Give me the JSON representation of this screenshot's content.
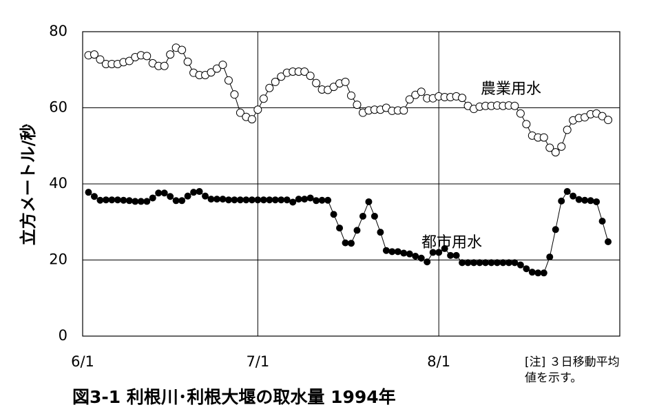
{
  "chart_data": {
    "type": "line",
    "title": "図3-1  利根川･利根大堰の取水量  1994年",
    "ylabel": "立方メートル/秒",
    "note": [
      "[注] ３日移動平均",
      "値を示す。"
    ],
    "x": [
      1,
      2,
      3,
      4,
      5,
      6,
      7,
      8,
      9,
      10,
      11,
      12,
      13,
      14,
      15,
      16,
      17,
      18,
      19,
      20,
      21,
      22,
      23,
      24,
      25,
      26,
      27,
      28,
      29,
      30,
      31,
      32,
      33,
      34,
      35,
      36,
      37,
      38,
      39,
      40,
      41,
      42,
      43,
      44,
      45,
      46,
      47,
      48,
      49,
      50,
      51,
      52,
      53,
      54,
      55,
      56,
      57,
      58,
      59,
      60,
      61,
      62,
      63,
      64,
      65,
      66,
      67,
      68,
      69,
      70,
      71,
      72,
      73,
      74,
      75,
      76,
      77,
      78,
      79,
      80,
      81,
      82,
      83,
      84,
      85,
      86,
      87,
      88,
      89,
      90
    ],
    "series": [
      {
        "name": "農業用水",
        "color": "#000000",
        "marker": "open",
        "values": [
          73.8,
          74,
          72.7,
          71.5,
          71.5,
          71.5,
          72,
          72.3,
          73.3,
          73.8,
          73.6,
          71.7,
          71,
          71,
          74,
          75.8,
          75.2,
          72.1,
          69.2,
          68.6,
          68.6,
          69.3,
          70.3,
          71.3,
          67.2,
          63.5,
          58.7,
          57.6,
          57,
          59.5,
          62.4,
          65.2,
          66.8,
          68.2,
          69.2,
          69.5,
          69.5,
          69.5,
          68.4,
          66.5,
          64.8,
          64.7,
          65.5,
          66.4,
          66.8,
          63.2,
          60.8,
          58.7,
          59.3,
          59.5,
          59.5,
          60,
          59.2,
          59.3,
          59.3,
          62.2,
          63.4,
          64.2,
          62.5,
          62.5,
          63,
          62.8,
          62.8,
          63,
          62.6,
          60.5,
          59.7,
          60.3,
          60.5,
          60.5,
          60.6,
          60.5,
          60.6,
          60.5,
          58.5,
          55.7,
          52.7,
          52.2,
          52.2,
          49.5,
          48.3,
          49.8,
          54.2,
          56.7,
          57.3,
          57.5,
          58.3,
          58.5,
          57.8,
          56.8
        ]
      },
      {
        "name": "都市用水",
        "color": "#000000",
        "marker": "filled",
        "values": [
          37.8,
          36.7,
          35.7,
          35.8,
          35.8,
          35.8,
          35.7,
          35.6,
          35.4,
          35.4,
          35.4,
          36.3,
          37.6,
          37.6,
          36.7,
          35.6,
          35.6,
          36.8,
          37.8,
          38,
          36.8,
          36,
          36,
          36,
          35.8,
          35.8,
          35.8,
          35.8,
          35.8,
          35.8,
          35.8,
          35.8,
          35.8,
          35.8,
          35.8,
          35.2,
          36,
          36,
          36.3,
          35.6,
          35.7,
          35.7,
          32,
          28.4,
          24.5,
          24.4,
          27.8,
          31.5,
          35.3,
          31.5,
          27.3,
          22.5,
          22.2,
          22.2,
          21.8,
          21.6,
          21,
          20.5,
          19.5,
          22,
          22,
          23,
          21.2,
          21.2,
          19.3,
          19.3,
          19.3,
          19.3,
          19.3,
          19.3,
          19.3,
          19.3,
          19.3,
          19.3,
          18.7,
          17.7,
          16.8,
          16.6,
          16.6,
          20.8,
          28,
          35.5,
          38,
          36.8,
          35.9,
          35.7,
          35.6,
          35.3,
          30.2,
          24.8
        ]
      }
    ],
    "xlim": [
      0,
      92
    ],
    "xticks": [
      {
        "value": 0,
        "label": "6/1"
      },
      {
        "value": 30,
        "label": "7/1"
      },
      {
        "value": 61,
        "label": "8/1"
      }
    ],
    "ylim": [
      0,
      80
    ],
    "yticks": [
      0,
      20,
      40,
      60,
      80
    ],
    "grid": true
  }
}
